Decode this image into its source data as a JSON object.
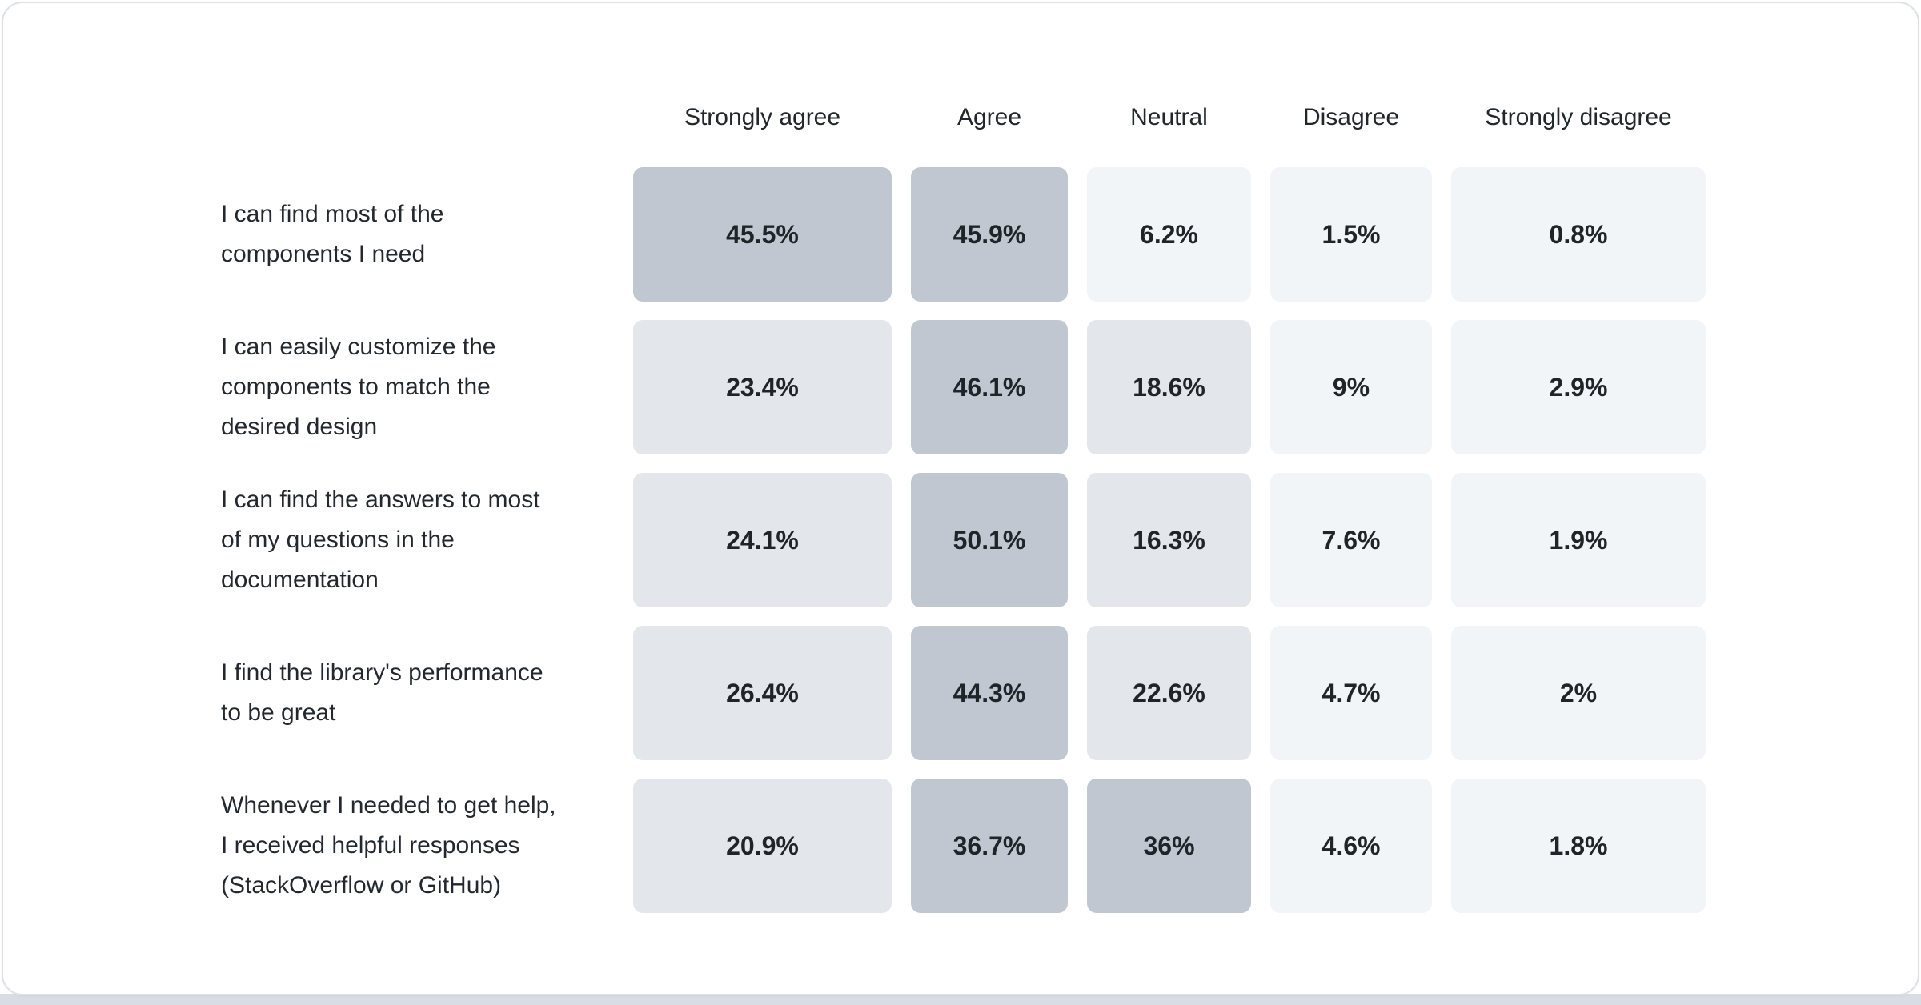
{
  "page": {
    "background": "#ffffff",
    "card_border_color": "#dde1e6",
    "bottom_strip_color": "#d8dde3"
  },
  "chart_data": {
    "type": "heatmap",
    "title": "",
    "value_format": "percent",
    "legend_position": "none",
    "grid": false,
    "text_color": "#21272a",
    "categories": [
      "Strongly agree",
      "Agree",
      "Neutral",
      "Disagree",
      "Strongly disagree"
    ],
    "rows": [
      {
        "label": "I can find most of the\ncomponents I need",
        "values": [
          45.5,
          45.9,
          6.2,
          1.5,
          0.8
        ]
      },
      {
        "label": "I can easily customize the\ncomponents to match the\ndesired design",
        "values": [
          23.4,
          46.1,
          18.6,
          9,
          2.9
        ]
      },
      {
        "label": "I can find the answers to most\nof my questions in the\ndocumentation",
        "values": [
          24.1,
          50.1,
          16.3,
          7.6,
          1.9
        ]
      },
      {
        "label": "I find the library's performance\nto be great",
        "values": [
          26.4,
          44.3,
          22.6,
          4.7,
          2
        ]
      },
      {
        "label": "Whenever I needed to get help,\nI received helpful responses\n(StackOverflow or GitHub)",
        "values": [
          20.9,
          36.7,
          36,
          4.6,
          1.8
        ]
      }
    ],
    "color_scale": [
      {
        "min": 30,
        "color": "#c1c7d0"
      },
      {
        "min": 10,
        "color": "#e3e7eb"
      },
      {
        "min": 0,
        "color": "#f2f5f8"
      }
    ]
  }
}
